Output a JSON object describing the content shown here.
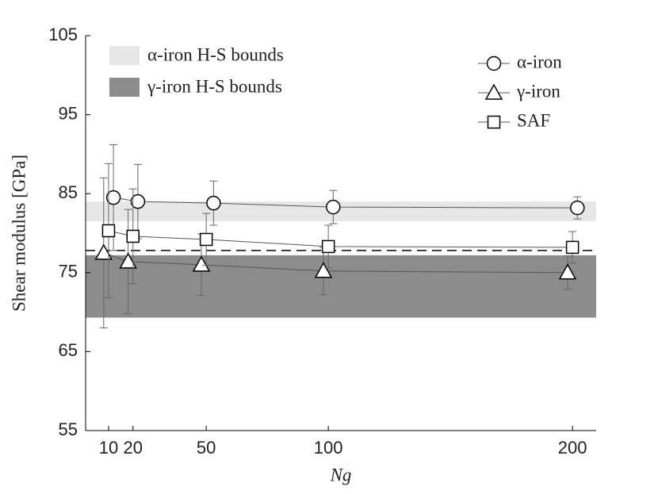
{
  "chart_data": {
    "type": "errorbar-line",
    "x_label": "Ng",
    "y_label": "Shear modulus [GPa]",
    "xlim": [
      0.6,
      209.7
    ],
    "xticks": [
      10,
      20,
      50,
      100,
      200
    ],
    "ylim": [
      55,
      105
    ],
    "yticks": [
      55,
      65,
      75,
      85,
      95,
      105
    ],
    "bands": [
      {
        "name": "α-iron H-S bounds",
        "color": "#e6e6e6",
        "range": [
          81.5,
          84.0
        ]
      },
      {
        "name": "γ-iron H-S bounds",
        "color": "#8c8c8c",
        "range": [
          69.3,
          77.2
        ]
      }
    ],
    "reference_line": 77.8,
    "series": [
      {
        "name": "α-iron",
        "marker": "circle",
        "color": "#000000",
        "x": [
          12,
          22,
          53,
          102,
          202
        ],
        "values": [
          84.5,
          84.0,
          83.8,
          83.3,
          83.2
        ],
        "errors": [
          6.7,
          4.7,
          2.8,
          2.1,
          1.4
        ]
      },
      {
        "name": "γ-iron",
        "marker": "triangle",
        "color": "#000000",
        "x": [
          8,
          18,
          48,
          98,
          198
        ],
        "values": [
          77.5,
          76.4,
          76.0,
          75.2,
          75.0
        ],
        "errors": [
          9.5,
          6.6,
          3.9,
          3.0,
          2.1
        ]
      },
      {
        "name": "SAF",
        "marker": "square",
        "color": "#000000",
        "x": [
          10,
          20,
          50,
          100,
          200
        ],
        "values": [
          80.3,
          79.6,
          79.2,
          78.3,
          78.2
        ],
        "errors": [
          8.5,
          6.0,
          3.3,
          2.7,
          2.0
        ]
      }
    ]
  }
}
